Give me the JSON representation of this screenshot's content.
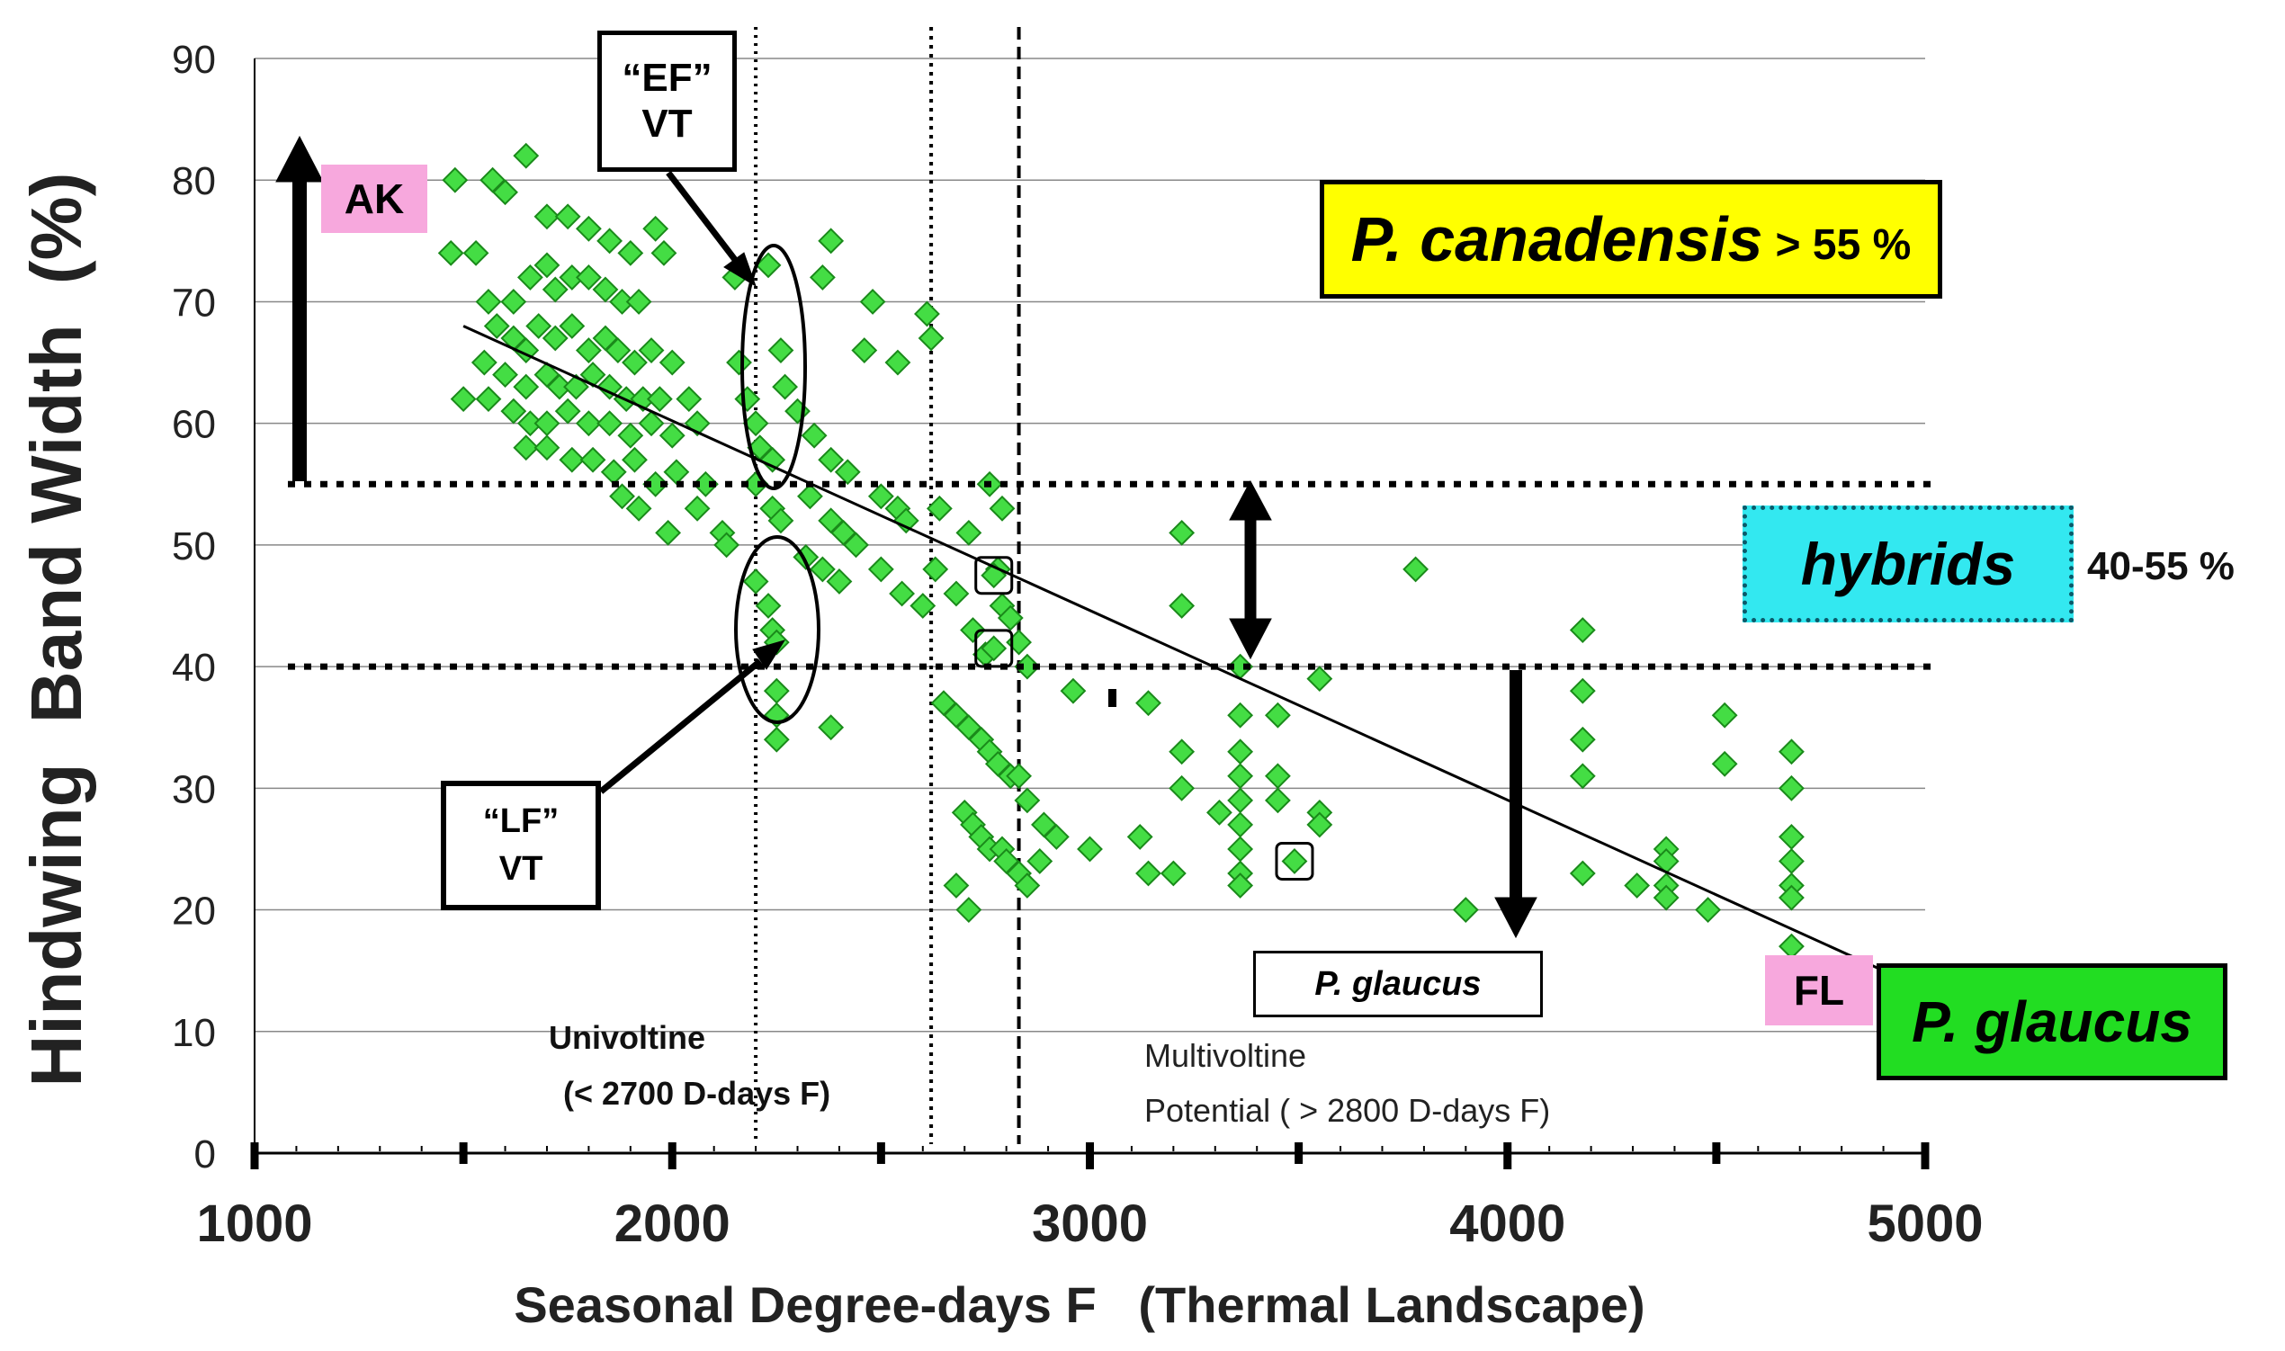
{
  "chart_data": {
    "type": "scatter",
    "xlabel": "Seasonal Degree-days F   (Thermal Landscape)",
    "ylabel": "Hindwing  Band Width  (%)",
    "xlim": [
      1000,
      5000
    ],
    "ylim": [
      0,
      90
    ],
    "x_ticks": [
      "1000",
      "2000",
      "3000",
      "4000",
      "5000"
    ],
    "y_ticks": [
      "0",
      "10",
      "20",
      "30",
      "40",
      "50",
      "60",
      "70",
      "80",
      "90"
    ],
    "points": [
      [
        1480,
        80
      ],
      [
        1570,
        80
      ],
      [
        1600,
        79
      ],
      [
        1650,
        82
      ],
      [
        1700,
        77
      ],
      [
        1750,
        77
      ],
      [
        1800,
        76
      ],
      [
        1850,
        75
      ],
      [
        1900,
        74
      ],
      [
        1960,
        76
      ],
      [
        1470,
        74
      ],
      [
        1530,
        74
      ],
      [
        1560,
        70
      ],
      [
        1620,
        70
      ],
      [
        1660,
        72
      ],
      [
        1700,
        73
      ],
      [
        1720,
        71
      ],
      [
        1760,
        72
      ],
      [
        1800,
        72
      ],
      [
        1840,
        71
      ],
      [
        1880,
        70
      ],
      [
        1920,
        70
      ],
      [
        1580,
        68
      ],
      [
        1620,
        67
      ],
      [
        1650,
        66
      ],
      [
        1680,
        68
      ],
      [
        1720,
        67
      ],
      [
        1760,
        68
      ],
      [
        1800,
        66
      ],
      [
        1840,
        67
      ],
      [
        1870,
        66
      ],
      [
        1910,
        65
      ],
      [
        1950,
        66
      ],
      [
        2000,
        65
      ],
      [
        1550,
        65
      ],
      [
        1600,
        64
      ],
      [
        1650,
        63
      ],
      [
        1700,
        64
      ],
      [
        1730,
        63
      ],
      [
        1770,
        63
      ],
      [
        1810,
        64
      ],
      [
        1850,
        63
      ],
      [
        1890,
        62
      ],
      [
        1930,
        62
      ],
      [
        1970,
        62
      ],
      [
        2040,
        62
      ],
      [
        1500,
        62
      ],
      [
        1560,
        62
      ],
      [
        1620,
        61
      ],
      [
        1660,
        60
      ],
      [
        1700,
        60
      ],
      [
        1750,
        61
      ],
      [
        1800,
        60
      ],
      [
        1850,
        60
      ],
      [
        1900,
        59
      ],
      [
        1950,
        60
      ],
      [
        2000,
        59
      ],
      [
        2060,
        60
      ],
      [
        1650,
        58
      ],
      [
        1700,
        58
      ],
      [
        1760,
        57
      ],
      [
        1810,
        57
      ],
      [
        1860,
        56
      ],
      [
        1910,
        57
      ],
      [
        1960,
        55
      ],
      [
        2010,
        56
      ],
      [
        2080,
        55
      ],
      [
        1880,
        54
      ],
      [
        1920,
        53
      ],
      [
        1990,
        51
      ],
      [
        2060,
        53
      ],
      [
        1980,
        74
      ],
      [
        2150,
        72
      ],
      [
        2230,
        73
      ],
      [
        2380,
        75
      ],
      [
        2360,
        72
      ],
      [
        2480,
        70
      ],
      [
        2610,
        69
      ],
      [
        2620,
        67
      ],
      [
        2460,
        66
      ],
      [
        2540,
        65
      ],
      [
        2160,
        65
      ],
      [
        2180,
        62
      ],
      [
        2200,
        60
      ],
      [
        2210,
        58
      ],
      [
        2240,
        57
      ],
      [
        2260,
        66
      ],
      [
        2270,
        63
      ],
      [
        2300,
        61
      ],
      [
        2340,
        59
      ],
      [
        2380,
        57
      ],
      [
        2420,
        56
      ],
      [
        2200,
        55
      ],
      [
        2240,
        53
      ],
      [
        2260,
        52
      ],
      [
        2330,
        54
      ],
      [
        2380,
        52
      ],
      [
        2410,
        51
      ],
      [
        2440,
        50
      ],
      [
        2500,
        54
      ],
      [
        2540,
        53
      ],
      [
        2560,
        52
      ],
      [
        2120,
        51
      ],
      [
        2130,
        50
      ],
      [
        2200,
        47
      ],
      [
        2230,
        45
      ],
      [
        2240,
        43
      ],
      [
        2250,
        42
      ],
      [
        2250,
        38
      ],
      [
        2250,
        36
      ],
      [
        2250,
        34
      ],
      [
        2380,
        35
      ],
      [
        2320,
        49
      ],
      [
        2360,
        48
      ],
      [
        2400,
        47
      ],
      [
        2500,
        48
      ],
      [
        2550,
        46
      ],
      [
        2600,
        45
      ],
      [
        2630,
        48
      ],
      [
        2640,
        53
      ],
      [
        2710,
        51
      ],
      [
        2760,
        55
      ],
      [
        2790,
        53
      ],
      [
        2680,
        46
      ],
      [
        2720,
        43
      ],
      [
        2780,
        48
      ],
      [
        2790,
        45
      ],
      [
        2810,
        44
      ],
      [
        2830,
        42
      ],
      [
        2850,
        40
      ],
      [
        2750,
        41
      ],
      [
        2650,
        37
      ],
      [
        2680,
        36
      ],
      [
        2710,
        35
      ],
      [
        2740,
        34
      ],
      [
        2760,
        33
      ],
      [
        2780,
        32
      ],
      [
        2810,
        31
      ],
      [
        2830,
        31
      ],
      [
        2850,
        29
      ],
      [
        2700,
        28
      ],
      [
        2720,
        27
      ],
      [
        2740,
        26
      ],
      [
        2760,
        25
      ],
      [
        2790,
        25
      ],
      [
        2800,
        24
      ],
      [
        2830,
        23
      ],
      [
        2850,
        22
      ],
      [
        2680,
        22
      ],
      [
        2710,
        20
      ],
      [
        2890,
        27
      ],
      [
        2920,
        26
      ],
      [
        2960,
        38
      ],
      [
        2880,
        24
      ],
      [
        3000,
        25
      ],
      [
        3120,
        26
      ],
      [
        3140,
        23
      ],
      [
        3200,
        23
      ],
      [
        3140,
        37
      ],
      [
        3220,
        51
      ],
      [
        3220,
        45
      ],
      [
        3220,
        33
      ],
      [
        3220,
        30
      ],
      [
        3310,
        28
      ],
      [
        3360,
        33
      ],
      [
        3360,
        31
      ],
      [
        3360,
        29
      ],
      [
        3360,
        27
      ],
      [
        3360,
        25
      ],
      [
        3360,
        23
      ],
      [
        3360,
        22
      ],
      [
        3360,
        40
      ],
      [
        3360,
        36
      ],
      [
        3450,
        36
      ],
      [
        3450,
        31
      ],
      [
        3450,
        29
      ],
      [
        3550,
        28
      ],
      [
        3550,
        27
      ],
      [
        3550,
        39
      ],
      [
        3780,
        48
      ],
      [
        3900,
        20
      ],
      [
        4180,
        43
      ],
      [
        4180,
        38
      ],
      [
        4180,
        34
      ],
      [
        4180,
        31
      ],
      [
        4180,
        23
      ],
      [
        4310,
        22
      ],
      [
        4380,
        25
      ],
      [
        4380,
        24
      ],
      [
        4380,
        22
      ],
      [
        4380,
        21
      ],
      [
        4520,
        36
      ],
      [
        4520,
        32
      ],
      [
        4680,
        33
      ],
      [
        4680,
        30
      ],
      [
        4680,
        26
      ],
      [
        4680,
        24
      ],
      [
        4680,
        22
      ],
      [
        4680,
        21
      ],
      [
        4680,
        17
      ],
      [
        4480,
        20
      ]
    ],
    "highlighted_points": [
      [
        2770,
        47.5
      ],
      [
        2770,
        41.5
      ],
      [
        3490,
        24
      ]
    ],
    "trendline": {
      "x": [
        1500,
        4900
      ],
      "y": [
        68,
        15
      ]
    },
    "vertical_lines": [
      2200,
      2620,
      2830
    ],
    "horizontal_thresholds": [
      55,
      40
    ],
    "annotations": {
      "ef_box": [
        "“EF”",
        "VT"
      ],
      "lf_box": [
        "“LF”",
        "VT"
      ],
      "ak": "AK",
      "fl": "FL",
      "p_canadensis": "P. canadensis",
      "p_canadensis_suffix": "> 55 %",
      "hybrids": "hybrids",
      "hybrids_range": "40-55 %",
      "p_glaucus_small": "P. glaucus",
      "p_glaucus_big": "P. glaucus",
      "univoltine": [
        "Univoltine",
        "(< 2700 D-days F)"
      ],
      "multivoltine": [
        "Multivoltine",
        "Potential ( > 2800 D-days F)"
      ]
    }
  },
  "colors": {
    "points": "#44dd44",
    "points_edge": "#1a8a1a",
    "p_canadensis_bg": "#ffff00",
    "hybrids_bg": "#33e8f0",
    "p_glaucus_bg": "#22dd22",
    "pink_label_bg": "#f7a8dd"
  }
}
